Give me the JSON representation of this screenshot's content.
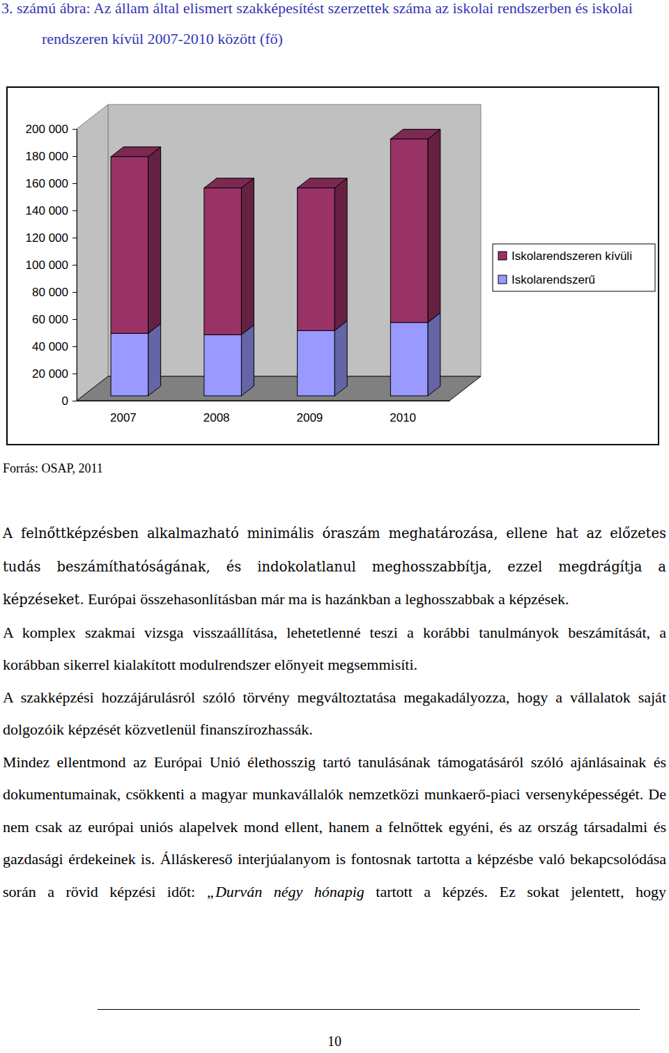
{
  "chart_data": {
    "type": "bar",
    "title": "3. számú ábra: Az állam által elismert szakképesítést szerzettek száma az iskolai rendszerben és iskolai rendszeren kívül 2007-2010 között (fő)",
    "categories": [
      "2007",
      "2008",
      "2009",
      "2010"
    ],
    "series": [
      {
        "name": "Iskolarendszerű",
        "color": "#9999ff",
        "values": [
          46000,
          45000,
          48000,
          54000
        ]
      },
      {
        "name": "Iskolarendszeren kívüli",
        "color": "#993366",
        "values": [
          130000,
          108000,
          105000,
          135000
        ]
      }
    ],
    "stacked": true,
    "ylim": [
      0,
      200000
    ],
    "yticks": [
      0,
      {
        "value": 20000,
        "label": "20 000"
      },
      {
        "value": 40000,
        "label": "40 000"
      },
      {
        "value": 60000,
        "label": "60 000"
      },
      {
        "value": 80000,
        "label": "80 000"
      },
      {
        "value": 100000,
        "label": "100 000"
      },
      {
        "value": 120000,
        "label": "120 000"
      },
      {
        "value": 140000,
        "label": "140 000"
      },
      {
        "value": 160000,
        "label": "160 000"
      },
      {
        "value": 180000,
        "label": "180 000"
      },
      {
        "value": 200000,
        "label": "200 000"
      }
    ],
    "grid": false,
    "legend": "right"
  },
  "source": "Forrás: OSAP, 2011",
  "paragraphs": [
    [
      "A felnőttképzésben alkalmazható minimális óraszám meghatározása, ellene hat az előzetes tudás beszámíthatóságának, és indokolatlanul meghosszabbítja, ezzel megdrágítja a képzéseket.",
      " Európai összehasonlításban már ma is hazánkban a leghosszabbak a képzések."
    ],
    [
      "A komplex szakmai vizsga visszaállítása, lehetetlenné teszi a korábbi tanulmányok beszámítását, a korábban sikerrel kialakított modulrendszer előnyeit megsemmisíti."
    ],
    [
      "A szakképzési hozzájárulásról szóló törvény megváltoztatása megakadályozza, hogy a vállalatok saját dolgozóik képzését közvetlenül finanszírozhassák."
    ],
    [
      "Mindez ellentmond az Európai Unió élethosszig tartó tanulásának támogatásáról szóló ajánlásainak és dokumentumainak, csökkenti a magyar munkavállalók nemzetközi munkaerő-piaci versenyképességét. De nem csak az európai uniós alapelvek mond ellent, hanem a felnőttek egyéni, és az ország társadalmi és gazdasági érdekeinek is. Álláskereső interjúalanyom is fontosnak tartotta a képzésbe való bekapcsolódása során a rövid képzési időt: ",
      "„Durván négy hónapig",
      " tartott a képzés. Ez sokat jelentett, hogy"
    ]
  ],
  "page_number": "10"
}
